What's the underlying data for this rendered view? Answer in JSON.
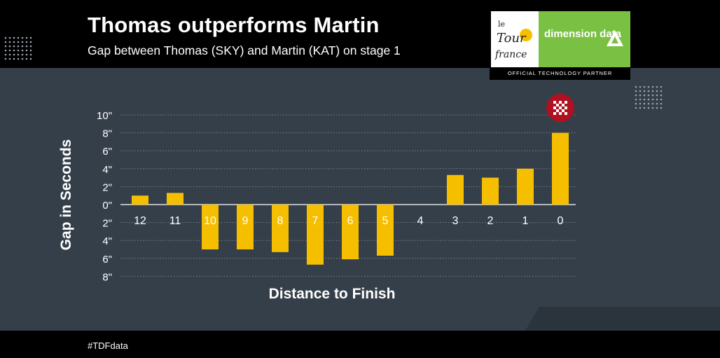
{
  "header": {
    "title": "Thomas outperforms Martin",
    "subtitle": "Gap between Thomas (SKY) and Martin (KAT) on stage 1"
  },
  "logo": {
    "tdf_text": "le TOUR de france",
    "brand_text": "dimension data",
    "partner_text": "OFFICIAL TECHNOLOGY PARTNER"
  },
  "footer": {
    "hashtag": "#TDFdata"
  },
  "colors": {
    "background_panel": "#353f4a",
    "bar": "#f5bf00",
    "brand_green": "#7ac143",
    "finish_flag": "#b01020"
  },
  "chart_data": {
    "type": "bar",
    "categories": [
      "12",
      "11",
      "10",
      "9",
      "8",
      "7",
      "6",
      "5",
      "4",
      "3",
      "2",
      "1",
      "0"
    ],
    "values": [
      1,
      1.3,
      -5,
      -5,
      -5.3,
      -6.7,
      -6.1,
      -5.7,
      0,
      3.3,
      3,
      4,
      8
    ],
    "title": "Thomas outperforms Martin",
    "subtitle": "Gap between Thomas (SKY) and Martin (KAT) on stage 1",
    "xlabel": "Distance to Finish",
    "ylabel": "Gap in Seconds",
    "ylim": [
      -8,
      10
    ],
    "yticks": [
      10,
      8,
      6,
      4,
      2,
      0,
      -2,
      -4,
      -6,
      -8
    ],
    "ytick_labels": [
      "10\"",
      "8\"",
      "6\"",
      "4\"",
      "2\"",
      "0\"",
      "2\"",
      "4\"",
      "6\"",
      "8\""
    ],
    "grid": true,
    "legend": "none",
    "annotation": "checkered-flag-icon above last bar"
  }
}
